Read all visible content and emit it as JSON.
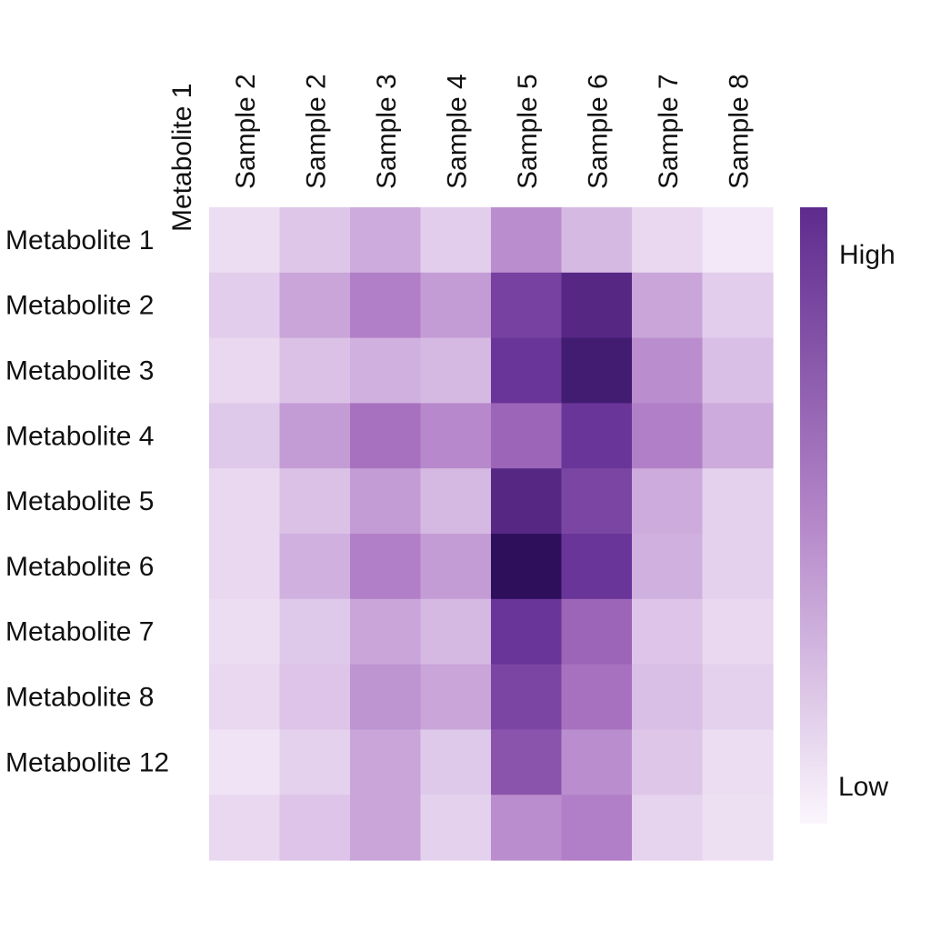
{
  "chart_data": {
    "type": "heatmap",
    "corner_label": "Metabolite 1",
    "columns": [
      "Sample 2",
      "Sample 2",
      "Sample 3",
      "Sample 4",
      "Sample 5",
      "Sample 6",
      "Sample 7",
      "Sample 8"
    ],
    "rows": [
      "Metabolite 1",
      "Metabolite 2",
      "Metabolite 3",
      "Metabolite 4",
      "Metabolite 5",
      "Metabolite 6",
      "Metabolite 7",
      "Metabolite 8",
      "Metabolite 12",
      ""
    ],
    "values": [
      [
        0.12,
        0.27,
        0.4,
        0.22,
        0.5,
        0.35,
        0.15,
        0.05
      ],
      [
        0.22,
        0.42,
        0.55,
        0.45,
        0.8,
        0.9,
        0.42,
        0.22
      ],
      [
        0.15,
        0.3,
        0.38,
        0.35,
        0.85,
        0.95,
        0.5,
        0.32
      ],
      [
        0.25,
        0.45,
        0.6,
        0.52,
        0.65,
        0.85,
        0.55,
        0.4
      ],
      [
        0.15,
        0.3,
        0.45,
        0.35,
        0.9,
        0.78,
        0.4,
        0.2
      ],
      [
        0.15,
        0.38,
        0.55,
        0.45,
        1.0,
        0.85,
        0.38,
        0.2
      ],
      [
        0.12,
        0.25,
        0.42,
        0.35,
        0.85,
        0.65,
        0.28,
        0.15
      ],
      [
        0.15,
        0.28,
        0.48,
        0.42,
        0.78,
        0.6,
        0.32,
        0.2
      ],
      [
        0.08,
        0.2,
        0.42,
        0.25,
        0.72,
        0.5,
        0.27,
        0.12
      ],
      [
        0.15,
        0.28,
        0.42,
        0.2,
        0.5,
        0.55,
        0.18,
        0.1
      ]
    ],
    "value_range": [
      0,
      1
    ],
    "colormap": {
      "low": "#f7f0fa",
      "mid": "#b385c8",
      "high": "#2e0f5c"
    },
    "colorbar": {
      "high_label": "High",
      "low_label": "Low"
    }
  }
}
